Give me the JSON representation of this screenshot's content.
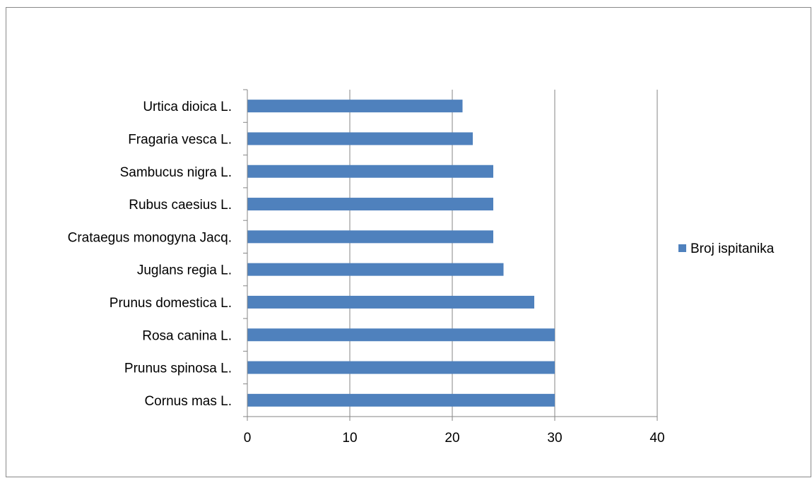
{
  "chart_data": {
    "type": "bar",
    "orientation": "horizontal",
    "categories": [
      "Cornus mas L.",
      "Prunus spinosa L.",
      "Rosa canina L.",
      "Prunus domestica L.",
      "Juglans regia L.",
      "Crataegus monogyna Jacq.",
      "Rubus caesius L.",
      "Sambucus nigra L.",
      "Fragaria vesca L.",
      "Urtica dioica L."
    ],
    "series": [
      {
        "name": "Broj ispitanika",
        "values": [
          30,
          30,
          30,
          28,
          25,
          24,
          24,
          24,
          22,
          21
        ],
        "color": "#4f81bd"
      }
    ],
    "xlim": [
      0,
      40
    ],
    "xticks": [
      0,
      10,
      20,
      30,
      40
    ],
    "grid": true,
    "legend_position": "right"
  }
}
